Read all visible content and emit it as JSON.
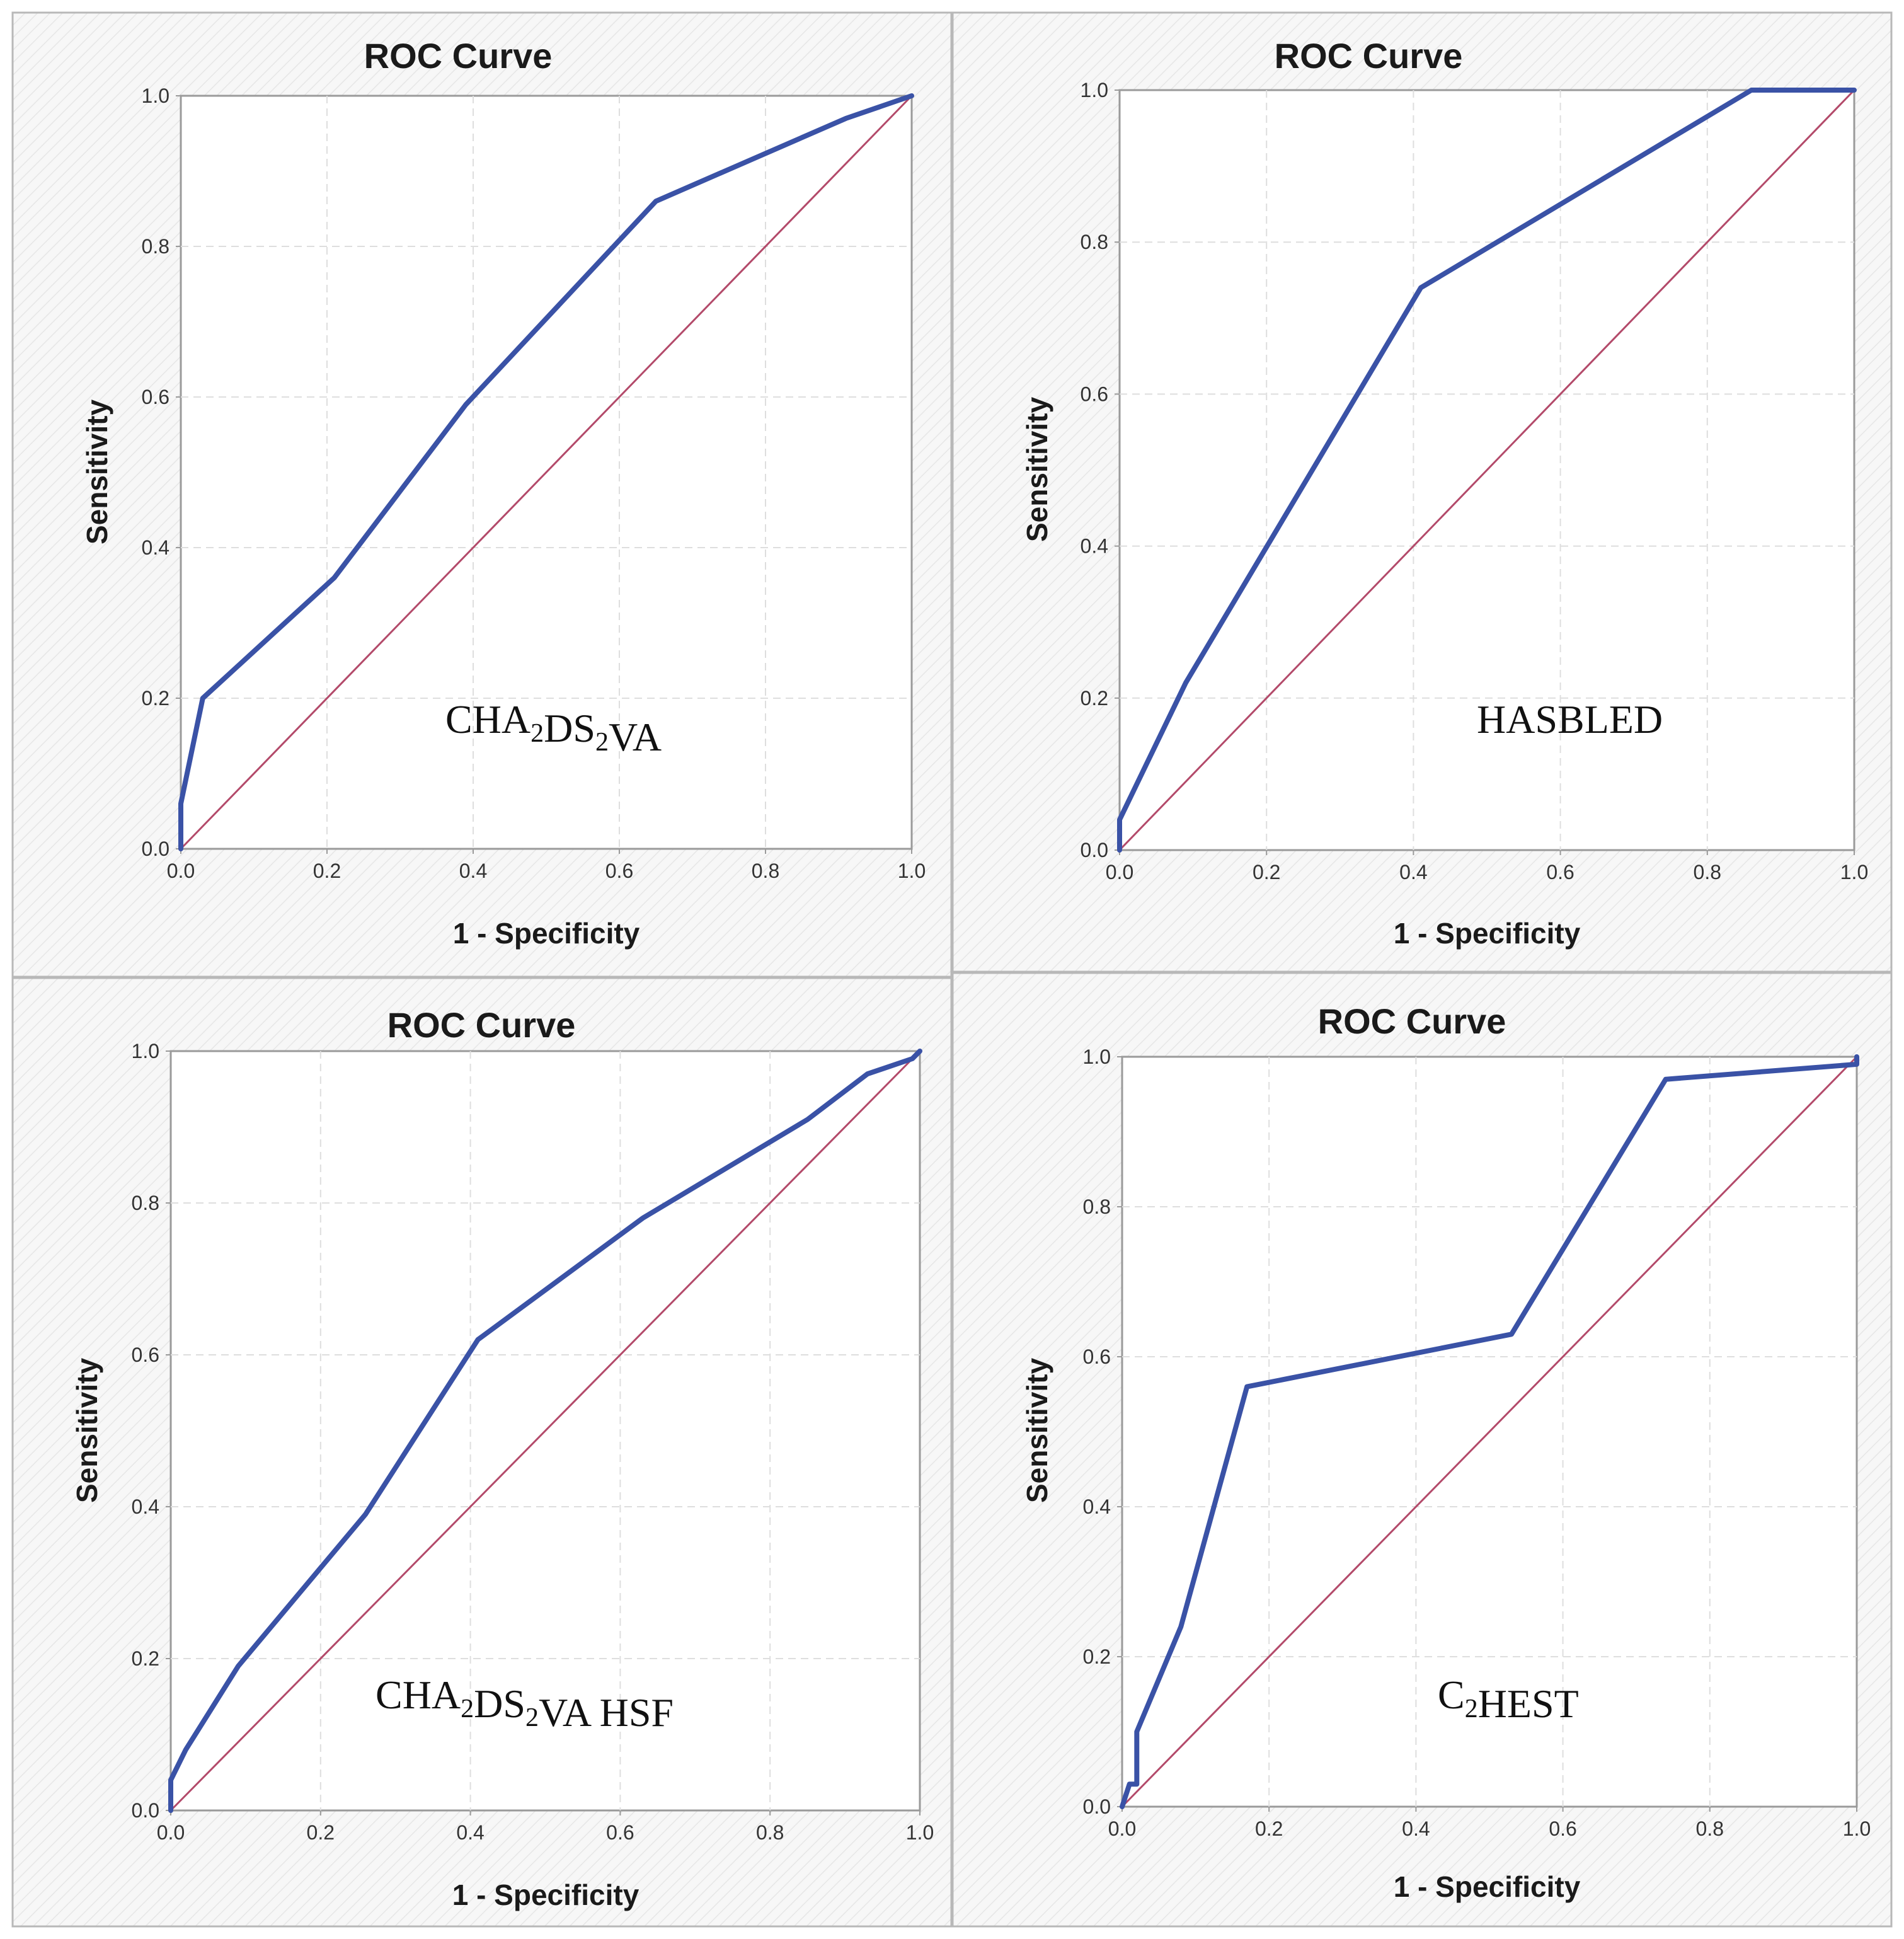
{
  "chart_data": [
    {
      "type": "line",
      "title": "ROC Curve",
      "xlabel": "1 - Specificity",
      "ylabel": "Sensitivity",
      "xlim": [
        0,
        1
      ],
      "ylim": [
        0,
        1
      ],
      "xticks": [
        "0.0",
        "0.2",
        "0.4",
        "0.6",
        "0.8",
        "1.0"
      ],
      "yticks": [
        "0.0",
        "0.2",
        "0.4",
        "0.6",
        "0.8",
        "1.0"
      ],
      "grid": true,
      "annotation": {
        "main": "CHA",
        "parts": [
          {
            "t": "CHA"
          },
          {
            "t": "2",
            "sub": true
          },
          {
            "t": "DS"
          },
          {
            "t": "2",
            "sub": true
          },
          {
            "t": "VA"
          }
        ]
      },
      "series": [
        {
          "name": "ROC",
          "x": [
            0,
            0,
            0.03,
            0.21,
            0.39,
            0.65,
            0.91,
            1.0
          ],
          "y": [
            0,
            0.06,
            0.2,
            0.36,
            0.59,
            0.86,
            0.97,
            1.0
          ]
        },
        {
          "name": "Reference line",
          "x": [
            0,
            1
          ],
          "y": [
            0,
            1
          ]
        }
      ]
    },
    {
      "type": "line",
      "title": "ROC Curve",
      "xlabel": "1 - Specificity",
      "ylabel": "Sensitivity",
      "xlim": [
        0,
        1
      ],
      "ylim": [
        0,
        1
      ],
      "xticks": [
        "0.0",
        "0.2",
        "0.4",
        "0.6",
        "0.8",
        "1.0"
      ],
      "yticks": [
        "0.0",
        "0.2",
        "0.4",
        "0.6",
        "0.8",
        "1.0"
      ],
      "grid": true,
      "annotation": {
        "main": "HASBLED",
        "parts": [
          {
            "t": "HASBLED"
          }
        ]
      },
      "series": [
        {
          "name": "ROC",
          "x": [
            0,
            0,
            0.09,
            0.41,
            0.86,
            1.0
          ],
          "y": [
            0,
            0.04,
            0.22,
            0.74,
            1.0,
            1.0
          ]
        },
        {
          "name": "Reference line",
          "x": [
            0,
            1
          ],
          "y": [
            0,
            1
          ]
        }
      ]
    },
    {
      "type": "line",
      "title": "ROC Curve",
      "xlabel": "1 - Specificity",
      "ylabel": "Sensitivity",
      "xlim": [
        0,
        1
      ],
      "ylim": [
        0,
        1
      ],
      "xticks": [
        "0.0",
        "0.2",
        "0.4",
        "0.6",
        "0.8",
        "1.0"
      ],
      "yticks": [
        "0.0",
        "0.2",
        "0.4",
        "0.6",
        "0.8",
        "1.0"
      ],
      "grid": true,
      "annotation": {
        "main": "CHA",
        "parts": [
          {
            "t": "CHA"
          },
          {
            "t": "2",
            "sub": true
          },
          {
            "t": "DS"
          },
          {
            "t": "2",
            "sub": true
          },
          {
            "t": "VA  HSF"
          }
        ]
      },
      "series": [
        {
          "name": "ROC",
          "x": [
            0,
            0,
            0.02,
            0.09,
            0.26,
            0.41,
            0.63,
            0.85,
            0.93,
            0.99,
            1.0
          ],
          "y": [
            0,
            0.04,
            0.08,
            0.19,
            0.39,
            0.62,
            0.78,
            0.91,
            0.97,
            0.99,
            1.0
          ]
        },
        {
          "name": "Reference line",
          "x": [
            0,
            1
          ],
          "y": [
            0,
            1
          ]
        }
      ]
    },
    {
      "type": "line",
      "title": "ROC Curve",
      "xlabel": "1 - Specificity",
      "ylabel": "Sensitivity",
      "xlim": [
        0,
        1
      ],
      "ylim": [
        0,
        1
      ],
      "xticks": [
        "0.0",
        "0.2",
        "0.4",
        "0.6",
        "0.8",
        "1.0"
      ],
      "yticks": [
        "0.0",
        "0.2",
        "0.4",
        "0.6",
        "0.8",
        "1.0"
      ],
      "grid": true,
      "annotation": {
        "main": "C",
        "parts": [
          {
            "t": "C"
          },
          {
            "t": "2",
            "sub": true
          },
          {
            "t": "HEST"
          }
        ]
      },
      "series": [
        {
          "name": "ROC",
          "x": [
            0,
            0.01,
            0.02,
            0.02,
            0.08,
            0.17,
            0.53,
            0.74,
            1.0,
            1.0
          ],
          "y": [
            0,
            0.03,
            0.03,
            0.1,
            0.24,
            0.56,
            0.63,
            0.97,
            0.99,
            1.0
          ]
        },
        {
          "name": "Reference line",
          "x": [
            0,
            1
          ],
          "y": [
            0,
            1
          ]
        }
      ]
    }
  ]
}
